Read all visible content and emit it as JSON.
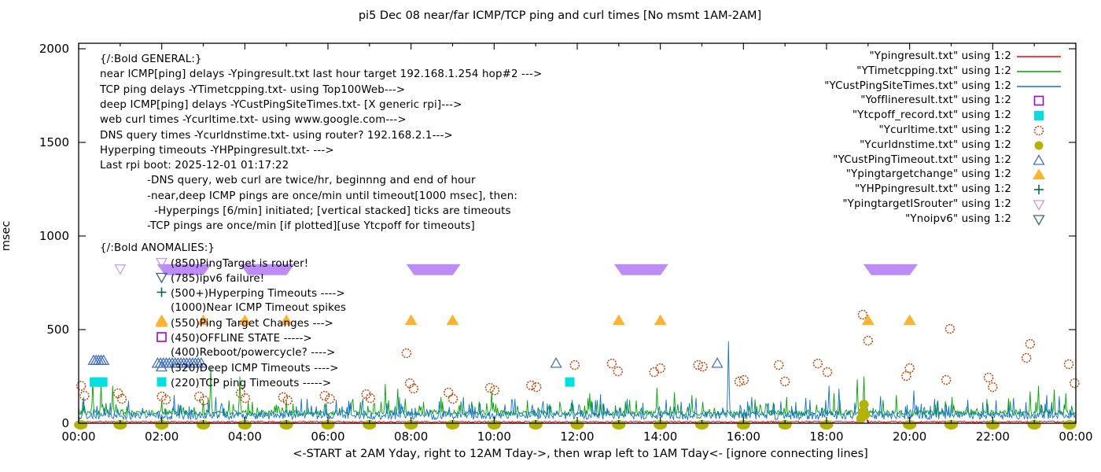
{
  "title": "pi5 Dec 08  near/far ICMP/TCP ping and curl times [No msmt 1AM-2AM]",
  "axes": {
    "ylabel": "msec",
    "xlabel": "<-START at 2AM Yday, right to 12AM Tday->, then wrap left to 1AM Tday<- [ignore connecting lines]",
    "yticks": [
      0,
      500,
      1000,
      1500,
      2000
    ],
    "xticks": [
      "00:00",
      "02:00",
      "04:00",
      "06:00",
      "08:00",
      "10:00",
      "12:00",
      "14:00",
      "16:00",
      "18:00",
      "20:00",
      "22:00",
      "00:00"
    ]
  },
  "legend": [
    {
      "label": "\"Ypingresult.txt\" using 1:2",
      "glyph": "line",
      "color": "#ff0000"
    },
    {
      "label": "\"YTimetcpping.txt\" using 1:2",
      "glyph": "line",
      "color": "#00a400"
    },
    {
      "label": "\"YCustPingSiteTimes.txt\" using 1:2",
      "glyph": "line",
      "color": "#0e72cf"
    },
    {
      "label": "\"Yofflineresult.txt\" using 1:2",
      "glyph": "square-open",
      "color": "#aa00cc"
    },
    {
      "label": "\"Ytcpoff_record.txt\" using 1:2",
      "glyph": "square-filled",
      "color": "#00e0e0"
    },
    {
      "label": "\"Ycurltime.txt\" using 1:2",
      "glyph": "circle-open",
      "color": "#c24000"
    },
    {
      "label": "\"Ycurldnstime.txt\" using 1:2",
      "glyph": "circle-filled",
      "color": "#b4b400"
    },
    {
      "label": "\"YCustPingTimeout.txt\" using 1:2",
      "glyph": "triangle-up-open",
      "color": "#4470c4"
    },
    {
      "label": "\"Ypingtargetchange\" using 1:2",
      "glyph": "triangle-up-filled",
      "color": "#ffb32e"
    },
    {
      "label": "\"YHPpingresult.txt\" using 1:2",
      "glyph": "plus",
      "color": "#00694f"
    },
    {
      "label": "\"YpingtargetISrouter\" using 1:2",
      "glyph": "triangle-down-open",
      "color": "#c49af0"
    },
    {
      "label": "\"Ynoipv6\" using 1:2",
      "glyph": "triangle-down-open",
      "color": "#3e6478"
    }
  ],
  "annotations": {
    "general_lines": [
      {
        "x": 127,
        "text": "{/:Bold GENERAL:}"
      },
      {
        "x": 127,
        "text": "near ICMP[ping] delays -Ypingresult.txt last hour target 192.168.1.254 hop#2 --->"
      },
      {
        "x": 127,
        "text": "TCP ping delays -YTimetcpping.txt- using Top100Web--->"
      },
      {
        "x": 127,
        "text": "deep ICMP[ping] delays -YCustPingSiteTimes.txt- [X generic rpi]--->"
      },
      {
        "x": 127,
        "text": "web curl times -Ycurltime.txt- using www.google.com--->"
      },
      {
        "x": 127,
        "text": "DNS query times -Ycurldnstime.txt- using router? 192.168.2.1--->"
      },
      {
        "x": 127,
        "text": "Hyperping timeouts -YHPpingresult.txt- --->"
      },
      {
        "x": 127,
        "text": "Last rpi boot: 2025-12-01 01:17:22"
      },
      {
        "x": 187,
        "text": "-DNS query, web curl are twice/hr, beginnng and end of hour"
      },
      {
        "x": 187,
        "text": "-near,deep ICMP pings are once/min until timeout[1000 msec], then:"
      },
      {
        "x": 196,
        "text": "-Hyperpings [6/min] initiated; [vertical stacked] ticks are timeouts"
      },
      {
        "x": 187,
        "text": "-TCP pings are once/min [if plotted][use Ytcpoff for timeouts]"
      }
    ],
    "anomalies_header": "{/:Bold ANOMALIES:}",
    "anomaly_rows": [
      {
        "glyph": "triangle-down-open",
        "color": "#c49af0",
        "text": "(850)PingTarget is router!"
      },
      {
        "glyph": "triangle-down-open",
        "color": "#3e6478",
        "text": "(785)ipv6 failure!"
      },
      {
        "glyph": "plus",
        "color": "#00694f",
        "text": "(500+)Hyperping Timeouts ---->"
      },
      {
        "glyph": null,
        "color": null,
        "text": "(1000)Near ICMP Timeout spikes"
      },
      {
        "glyph": "triangle-up-filled",
        "color": "#ffb32e",
        "text": "(550)Ping Target Changes --->"
      },
      {
        "glyph": "square-open",
        "color": "#aa00cc",
        "text": "(450)OFFLINE STATE ----->"
      },
      {
        "glyph": null,
        "color": null,
        "text": "(400)Reboot/powercycle? ---->"
      },
      {
        "glyph": "triangle-up-open",
        "color": "#4470c4",
        "text": "(320)Deep ICMP Timeouts ---->"
      },
      {
        "glyph": "square-filled",
        "color": "#00e0e0",
        "text": "(220)TCP ping Timeouts ----->"
      }
    ]
  },
  "chart_data": {
    "type": "line",
    "x_unit": "hour_of_day",
    "x_range": [
      0,
      24
    ],
    "y_unit": "msec",
    "y_range": [
      0,
      2000
    ],
    "grid": false,
    "legend_position": "top-right-inside",
    "lines": [
      {
        "name": "Ypingresult.txt",
        "color": "#ff0000",
        "base_msec": 8,
        "jitter_msec": 4,
        "min_msec": 3,
        "burst_p": 0,
        "burst_amp": 0,
        "seed": 11,
        "spikes_h_msec": [
          [
            18.85,
            235
          ],
          [
            18.88,
            120
          ],
          [
            18.91,
            195
          ],
          [
            18.94,
            80
          ]
        ]
      },
      {
        "name": "YTimetcpping.txt",
        "color": "#00a400",
        "base_msec": 55,
        "jitter_msec": 14,
        "min_msec": 30,
        "burst_p": 0.1,
        "burst_amp": 70,
        "seed": 23,
        "spikes_h_msec": [
          [
            0.34,
            230
          ],
          [
            0.53,
            210
          ],
          [
            0.81,
            200
          ],
          [
            3.18,
            300
          ],
          [
            3.88,
            250
          ],
          [
            7.38,
            210
          ],
          [
            7.67,
            185
          ],
          [
            8.71,
            140
          ],
          [
            9.94,
            170
          ],
          [
            12.3,
            160
          ],
          [
            13.91,
            190
          ],
          [
            14.33,
            165
          ],
          [
            14.76,
            150
          ],
          [
            17.03,
            140
          ],
          [
            18.17,
            160
          ],
          [
            18.74,
            235
          ],
          [
            18.9,
            250
          ],
          [
            19.68,
            150
          ],
          [
            21.01,
            140
          ],
          [
            21.86,
            130
          ],
          [
            22.9,
            170
          ],
          [
            23.09,
            200
          ],
          [
            23.47,
            180
          ],
          [
            23.75,
            160
          ]
        ]
      },
      {
        "name": "YCustPingSiteTimes.txt",
        "color": "#0e72cf",
        "base_msec": 40,
        "jitter_msec": 20,
        "min_msec": 12,
        "burst_p": 0.18,
        "burst_amp": 80,
        "seed": 37,
        "spikes_h_msec": [
          [
            0.12,
            140
          ],
          [
            1.2,
            120
          ],
          [
            2.3,
            150
          ],
          [
            3.3,
            140
          ],
          [
            5.5,
            130
          ],
          [
            6.2,
            125
          ],
          [
            9.26,
            140
          ],
          [
            10.5,
            130
          ],
          [
            11.87,
            125
          ],
          [
            12.55,
            155
          ],
          [
            13.2,
            130
          ],
          [
            15.64,
            437
          ],
          [
            16.2,
            140
          ],
          [
            17.5,
            135
          ],
          [
            18.05,
            200
          ],
          [
            18.3,
            185
          ],
          [
            19.3,
            145
          ],
          [
            20.1,
            175
          ],
          [
            20.6,
            130
          ],
          [
            21.4,
            125
          ],
          [
            22.5,
            135
          ],
          [
            23.3,
            150
          ],
          [
            23.6,
            145
          ]
        ]
      }
    ],
    "points": {
      "Yofflineresult_squares_h_msec": [],
      "Ytcpoff_record_squares_h_msec": [
        [
          0.38,
          220
        ],
        [
          0.48,
          220
        ],
        [
          0.58,
          220
        ],
        [
          11.82,
          220
        ]
      ],
      "Ycurltime_circles_h_msec": [
        [
          0.06,
          200
        ],
        [
          0.14,
          147
        ],
        [
          0.95,
          160
        ],
        [
          1.04,
          130
        ],
        [
          2.0,
          143
        ],
        [
          2.1,
          126
        ],
        [
          2.9,
          143
        ],
        [
          3.02,
          122
        ],
        [
          3.9,
          160
        ],
        [
          4.01,
          134
        ],
        [
          4.92,
          139
        ],
        [
          5.03,
          122
        ],
        [
          5.92,
          147
        ],
        [
          6.05,
          130
        ],
        [
          6.92,
          155
        ],
        [
          7.02,
          134
        ],
        [
          7.89,
          374
        ],
        [
          7.97,
          214
        ],
        [
          8.06,
          185
        ],
        [
          8.9,
          164
        ],
        [
          9.01,
          130
        ],
        [
          9.9,
          189
        ],
        [
          10.01,
          176
        ],
        [
          10.89,
          202
        ],
        [
          11.02,
          193
        ],
        [
          11.94,
          311
        ],
        [
          12.83,
          319
        ],
        [
          12.98,
          277
        ],
        [
          13.85,
          273
        ],
        [
          14.0,
          294
        ],
        [
          14.91,
          311
        ],
        [
          15.02,
          302
        ],
        [
          15.9,
          223
        ],
        [
          16.01,
          231
        ],
        [
          16.85,
          311
        ],
        [
          17.0,
          223
        ],
        [
          17.79,
          319
        ],
        [
          18.02,
          273
        ],
        [
          18.87,
          580
        ],
        [
          19.0,
          441
        ],
        [
          19.92,
          252
        ],
        [
          20.0,
          294
        ],
        [
          20.88,
          231
        ],
        [
          20.97,
          504
        ],
        [
          21.9,
          244
        ],
        [
          22.0,
          193
        ],
        [
          22.81,
          349
        ],
        [
          22.9,
          424
        ],
        [
          23.83,
          315
        ],
        [
          23.97,
          214
        ]
      ],
      "Ycurldnstime_hourly_dots_h": [
        0.05,
        1,
        2,
        3,
        4,
        5,
        6,
        7,
        8,
        9,
        10,
        11,
        12,
        13,
        14,
        15,
        16,
        17,
        18,
        20,
        21,
        22,
        23,
        23.85
      ],
      "Ycurldnstime_raised_h_msec": [
        [
          18.83,
          25
        ],
        [
          18.87,
          60
        ],
        [
          18.9,
          100
        ],
        [
          18.93,
          45
        ]
      ],
      "YCustPingTimeout_triangles_h_msec": [
        [
          0.36,
          335
        ],
        [
          0.42,
          335
        ],
        [
          0.48,
          335
        ],
        [
          0.54,
          335
        ],
        [
          0.6,
          335
        ],
        [
          1.9,
          320
        ],
        [
          1.97,
          320
        ],
        [
          2.04,
          320
        ],
        [
          2.11,
          320
        ],
        [
          2.18,
          320
        ],
        [
          2.25,
          320
        ],
        [
          2.32,
          320
        ],
        [
          2.39,
          320
        ],
        [
          2.46,
          320
        ],
        [
          2.53,
          320
        ],
        [
          2.6,
          320
        ],
        [
          2.67,
          320
        ],
        [
          2.74,
          320
        ],
        [
          2.81,
          320
        ],
        [
          2.88,
          320
        ],
        [
          2.95,
          320
        ],
        [
          11.49,
          320
        ],
        [
          15.37,
          320
        ]
      ],
      "Ypingtargetchange_triangles_h_msec": [
        [
          2,
          550
        ],
        [
          3,
          550
        ],
        [
          4,
          550
        ],
        [
          5,
          550
        ],
        [
          8,
          550
        ],
        [
          9,
          550
        ],
        [
          13,
          550
        ],
        [
          14,
          550
        ],
        [
          19,
          550
        ],
        [
          20,
          550
        ]
      ],
      "YHPpingresult_plus_h_msec": [],
      "YpingtargetISrouter_open_h_msec": [
        [
          1.0,
          850
        ]
      ],
      "Ynoipv6_h_msec": []
    },
    "bands_YpingtargetISrouter": {
      "value_msec": 850,
      "h_ranges": [
        [
          2,
          3.08
        ],
        [
          4,
          5.08
        ],
        [
          8,
          9.08
        ],
        [
          13,
          14.08
        ],
        [
          19,
          20.08
        ]
      ],
      "color": "#bd8cf7"
    }
  },
  "layout_note": "markers plotted over noisy ping traces; no measurements 1AM-2AM"
}
